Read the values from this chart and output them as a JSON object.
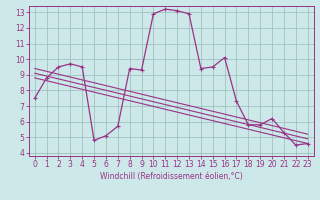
{
  "xlabel": "Windchill (Refroidissement éolien,°C)",
  "bg_color": "#cce8e8",
  "line_color": "#993388",
  "grid_color": "#99bbbb",
  "xlim": [
    -0.5,
    23.5
  ],
  "ylim": [
    3.8,
    13.4
  ],
  "xticks": [
    0,
    1,
    2,
    3,
    4,
    5,
    6,
    7,
    8,
    9,
    10,
    11,
    12,
    13,
    14,
    15,
    16,
    17,
    18,
    19,
    20,
    21,
    22,
    23
  ],
  "yticks": [
    4,
    5,
    6,
    7,
    8,
    9,
    10,
    11,
    12,
    13
  ],
  "curve1_x": [
    0,
    1,
    2,
    3,
    4,
    5,
    6,
    7,
    8,
    9,
    10,
    11,
    12,
    13,
    14,
    15,
    16,
    17,
    18,
    19,
    20,
    21,
    22,
    23
  ],
  "curve1_y": [
    7.5,
    8.8,
    9.5,
    9.7,
    9.5,
    4.8,
    5.1,
    5.7,
    9.4,
    9.3,
    12.9,
    13.2,
    13.1,
    12.9,
    9.4,
    9.5,
    10.1,
    7.3,
    5.8,
    5.8,
    6.2,
    5.3,
    4.5,
    4.6
  ],
  "line1_x": [
    0,
    23
  ],
  "line1_y": [
    9.4,
    5.2
  ],
  "line2_x": [
    0,
    23
  ],
  "line2_y": [
    9.1,
    4.9
  ],
  "line3_x": [
    0,
    23
  ],
  "line3_y": [
    8.8,
    4.6
  ],
  "tick_fontsize": 5.5,
  "xlabel_fontsize": 5.5
}
